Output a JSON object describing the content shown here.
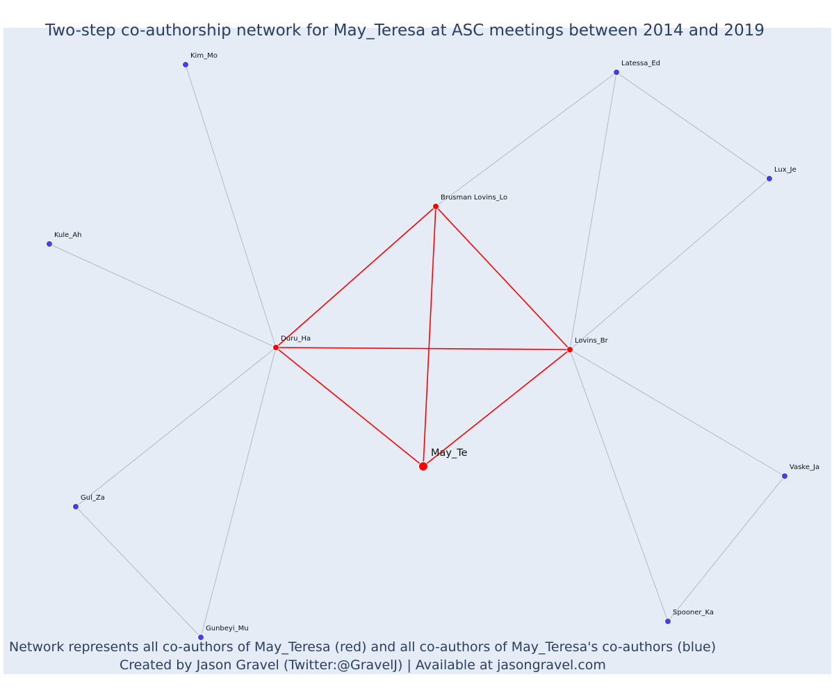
{
  "title": "Two-step co-authorship network for May_Teresa at ASC meetings between 2014 and 2019",
  "captions": [
    "Network represents all co-authors of May_Teresa (red) and all co-authors of May_Teresa's co-authors (blue)",
    "Created by Jason Gravel (Twitter:@GravelJ) | Available at jasongravel.com"
  ],
  "colors": {
    "background": "#e5ecf6",
    "text": "#2a3f5f",
    "first_degree": "#ff0000",
    "second_degree": "#4040ee",
    "second_degree_edge": "#b3b8c8"
  },
  "nodes": [
    {
      "id": "May_Te",
      "label": "May_Te",
      "group": "ego"
    },
    {
      "id": "Duru_Ha",
      "label": "Duru_Ha",
      "group": "first"
    },
    {
      "id": "Lovins_Br",
      "label": "Lovins_Br",
      "group": "first"
    },
    {
      "id": "Brusman Lovins_Lo",
      "label": "Brusman Lovins_Lo",
      "group": "first"
    },
    {
      "id": "Kim_Mo",
      "label": "Kim_Mo",
      "group": "second"
    },
    {
      "id": "Kule_Ah",
      "label": "Kule_Ah",
      "group": "second"
    },
    {
      "id": "Gul_Za",
      "label": "Gul_Za",
      "group": "second"
    },
    {
      "id": "Gunbeyi_Mu",
      "label": "Gunbeyi_Mu",
      "group": "second"
    },
    {
      "id": "Latessa_Ed",
      "label": "Latessa_Ed",
      "group": "second"
    },
    {
      "id": "Lux_Je",
      "label": "Lux_Je",
      "group": "second"
    },
    {
      "id": "Vaske_Ja",
      "label": "Vaske_Ja",
      "group": "second"
    },
    {
      "id": "Spooner_Ka",
      "label": "Spooner_Ka",
      "group": "second"
    }
  ],
  "edges": [
    {
      "source": "May_Te",
      "target": "Duru_Ha",
      "type": "first"
    },
    {
      "source": "May_Te",
      "target": "Lovins_Br",
      "type": "first"
    },
    {
      "source": "May_Te",
      "target": "Brusman Lovins_Lo",
      "type": "first"
    },
    {
      "source": "Duru_Ha",
      "target": "Lovins_Br",
      "type": "first"
    },
    {
      "source": "Duru_Ha",
      "target": "Brusman Lovins_Lo",
      "type": "first"
    },
    {
      "source": "Lovins_Br",
      "target": "Brusman Lovins_Lo",
      "type": "first"
    },
    {
      "source": "Duru_Ha",
      "target": "Kim_Mo",
      "type": "second"
    },
    {
      "source": "Duru_Ha",
      "target": "Kule_Ah",
      "type": "second"
    },
    {
      "source": "Duru_Ha",
      "target": "Gul_Za",
      "type": "second"
    },
    {
      "source": "Duru_Ha",
      "target": "Gunbeyi_Mu",
      "type": "second"
    },
    {
      "source": "Gul_Za",
      "target": "Gunbeyi_Mu",
      "type": "second"
    },
    {
      "source": "Brusman Lovins_Lo",
      "target": "Latessa_Ed",
      "type": "second"
    },
    {
      "source": "Lovins_Br",
      "target": "Latessa_Ed",
      "type": "second"
    },
    {
      "source": "Lovins_Br",
      "target": "Lux_Je",
      "type": "second"
    },
    {
      "source": "Latessa_Ed",
      "target": "Lux_Je",
      "type": "second"
    },
    {
      "source": "Lovins_Br",
      "target": "Vaske_Ja",
      "type": "second"
    },
    {
      "source": "Lovins_Br",
      "target": "Spooner_Ka",
      "type": "second"
    },
    {
      "source": "Vaske_Ja",
      "target": "Spooner_Ka",
      "type": "second"
    }
  ]
}
